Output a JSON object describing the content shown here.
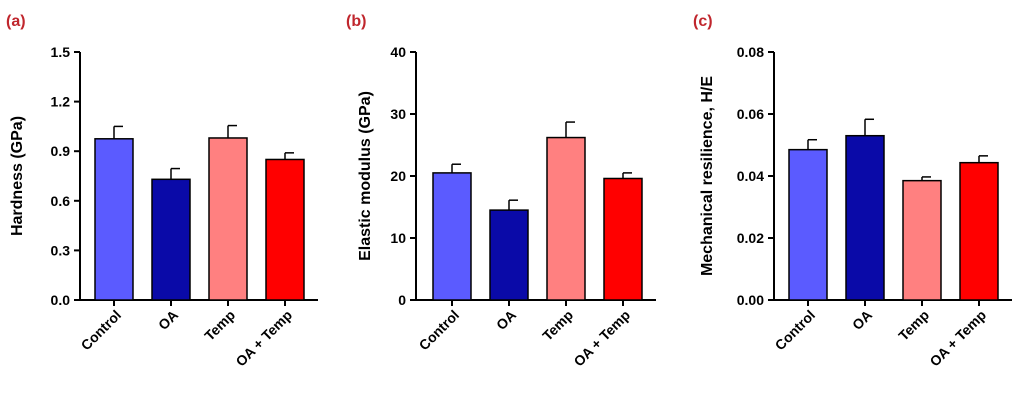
{
  "colors": {
    "control": "#5b5bff",
    "oa": "#0a0aa8",
    "temp": "#ff8080",
    "oa_temp": "#ff0000",
    "panel_label": "#c0262d"
  },
  "chart_data": [
    {
      "type": "bar",
      "panel_label": "(a)",
      "ylabel": "Hardness (GPa)",
      "categories": [
        "Control",
        "OA",
        "Temp",
        "OA + Temp"
      ],
      "values": [
        0.975,
        0.73,
        0.98,
        0.85
      ],
      "errors": [
        0.075,
        0.065,
        0.075,
        0.04
      ],
      "ylim": [
        0,
        1.5
      ],
      "yticks": [
        0.0,
        0.3,
        0.6,
        0.9,
        1.2,
        1.5
      ],
      "ytick_labels": [
        "0.0",
        "0.3",
        "0.6",
        "0.9",
        "1.2",
        "1.5"
      ],
      "grid": false
    },
    {
      "type": "bar",
      "panel_label": "(b)",
      "ylabel": "Elastic modulus (GPa)",
      "categories": [
        "Control",
        "OA",
        "Temp",
        "OA + Temp"
      ],
      "values": [
        20.5,
        14.5,
        26.2,
        19.6
      ],
      "errors": [
        1.4,
        1.6,
        2.5,
        0.9
      ],
      "ylim": [
        0,
        40
      ],
      "yticks": [
        0,
        10,
        20,
        30,
        40
      ],
      "ytick_labels": [
        "0",
        "10",
        "20",
        "30",
        "40"
      ],
      "grid": false
    },
    {
      "type": "bar",
      "panel_label": "(c)",
      "ylabel": "Mechanical resilience, H/E",
      "categories": [
        "Control",
        "OA",
        "Temp",
        "OA + Temp"
      ],
      "values": [
        0.0485,
        0.053,
        0.0385,
        0.0443
      ],
      "errors": [
        0.0032,
        0.0053,
        0.0012,
        0.0022
      ],
      "ylim": [
        0,
        0.08
      ],
      "yticks": [
        0.0,
        0.02,
        0.04,
        0.06,
        0.08
      ],
      "ytick_labels": [
        "0.00",
        "0.02",
        "0.04",
        "0.06",
        "0.08"
      ],
      "grid": false
    }
  ]
}
